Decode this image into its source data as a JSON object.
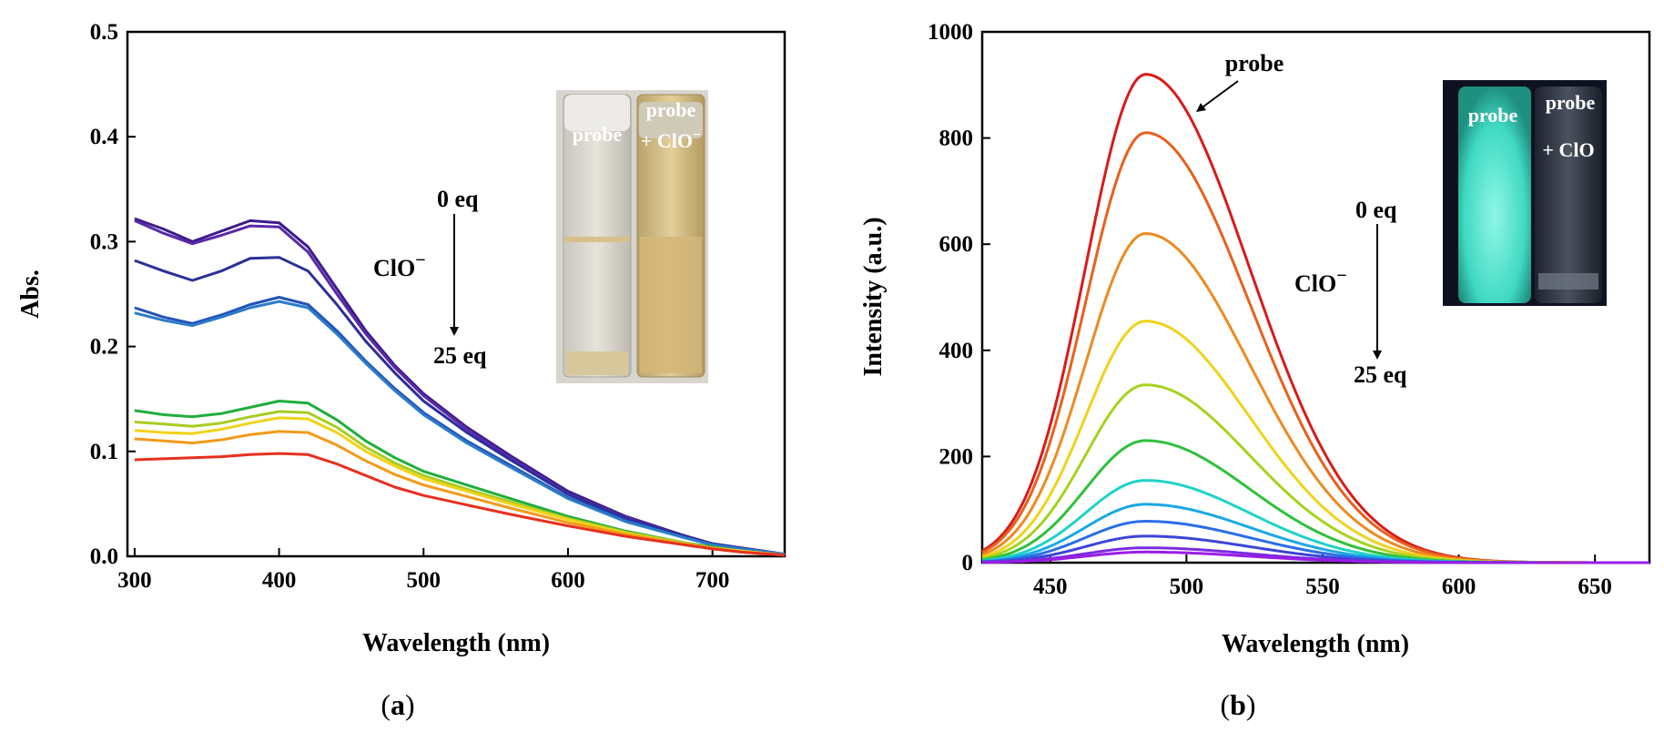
{
  "chart_data": [
    {
      "type": "line",
      "panel_label_prefix": "(",
      "panel_label": "a",
      "panel_label_suffix": ")",
      "xlabel": "Wavelength (nm)",
      "ylabel": "Abs.",
      "xlim": [
        295,
        750
      ],
      "ylim": [
        0,
        0.5
      ],
      "xticks": [
        300,
        400,
        500,
        600,
        700
      ],
      "yticks": [
        0.0,
        0.1,
        0.2,
        0.3,
        0.4,
        0.5
      ],
      "ytick_decimals": 1,
      "grid": false,
      "x": [
        300,
        320,
        340,
        360,
        380,
        400,
        420,
        440,
        460,
        480,
        500,
        530,
        560,
        600,
        640,
        680,
        700,
        720,
        750
      ],
      "series": [
        {
          "color": "#3d1a8c",
          "values": [
            0.322,
            0.312,
            0.3,
            0.31,
            0.32,
            0.318,
            0.295,
            0.255,
            0.215,
            0.182,
            0.155,
            0.123,
            0.096,
            0.062,
            0.038,
            0.02,
            0.012,
            0.008,
            0.002
          ]
        },
        {
          "color": "#5a2aa6",
          "values": [
            0.32,
            0.308,
            0.298,
            0.306,
            0.315,
            0.314,
            0.29,
            0.25,
            0.212,
            0.18,
            0.153,
            0.121,
            0.094,
            0.06,
            0.037,
            0.019,
            0.012,
            0.008,
            0.002
          ]
        },
        {
          "color": "#2b2f9a",
          "values": [
            0.282,
            0.272,
            0.263,
            0.272,
            0.284,
            0.285,
            0.272,
            0.24,
            0.205,
            0.175,
            0.148,
            0.118,
            0.092,
            0.059,
            0.036,
            0.019,
            0.012,
            0.008,
            0.002
          ]
        },
        {
          "color": "#2453b8",
          "values": [
            0.237,
            0.228,
            0.222,
            0.23,
            0.24,
            0.247,
            0.24,
            0.215,
            0.186,
            0.16,
            0.137,
            0.11,
            0.087,
            0.056,
            0.034,
            0.018,
            0.011,
            0.007,
            0.002
          ]
        },
        {
          "color": "#2b7cc9",
          "values": [
            0.232,
            0.225,
            0.22,
            0.228,
            0.237,
            0.243,
            0.237,
            0.212,
            0.184,
            0.158,
            0.135,
            0.108,
            0.085,
            0.055,
            0.033,
            0.018,
            0.011,
            0.007,
            0.002
          ]
        },
        {
          "color": "#1fae3c",
          "values": [
            0.139,
            0.135,
            0.133,
            0.136,
            0.142,
            0.148,
            0.146,
            0.13,
            0.11,
            0.094,
            0.081,
            0.068,
            0.055,
            0.038,
            0.024,
            0.013,
            0.009,
            0.005,
            0.001
          ]
        },
        {
          "color": "#a8cc1f",
          "values": [
            0.128,
            0.126,
            0.124,
            0.127,
            0.133,
            0.138,
            0.137,
            0.123,
            0.104,
            0.089,
            0.077,
            0.064,
            0.052,
            0.036,
            0.023,
            0.013,
            0.008,
            0.005,
            0.001
          ]
        },
        {
          "color": "#f2d21a",
          "values": [
            0.12,
            0.118,
            0.117,
            0.121,
            0.127,
            0.132,
            0.131,
            0.118,
            0.1,
            0.086,
            0.074,
            0.062,
            0.05,
            0.035,
            0.022,
            0.012,
            0.008,
            0.005,
            0.001
          ]
        },
        {
          "color": "#f29a1a",
          "values": [
            0.112,
            0.11,
            0.108,
            0.111,
            0.116,
            0.119,
            0.118,
            0.106,
            0.091,
            0.078,
            0.068,
            0.057,
            0.046,
            0.032,
            0.021,
            0.012,
            0.008,
            0.004,
            0.001
          ]
        },
        {
          "color": "#e6301f",
          "values": [
            0.092,
            0.093,
            0.094,
            0.095,
            0.097,
            0.098,
            0.097,
            0.088,
            0.077,
            0.066,
            0.058,
            0.049,
            0.04,
            0.029,
            0.019,
            0.011,
            0.007,
            0.004,
            0.001
          ]
        }
      ],
      "annotations": {
        "start": "0 eq",
        "end": "25 eq",
        "reagent": "ClO",
        "reagent_sup": "−"
      },
      "inset": {
        "left_label": "probe",
        "right_label_line1": "probe",
        "right_label_line2": "+ ClO",
        "right_label_sup": "−"
      }
    },
    {
      "type": "line",
      "panel_label_prefix": "(",
      "panel_label": "b",
      "panel_label_suffix": ")",
      "xlabel": "Wavelength (nm)",
      "ylabel": "Intensity (a.u.)",
      "xlim": [
        425,
        670
      ],
      "ylim": [
        0,
        1000
      ],
      "xticks": [
        450,
        500,
        550,
        600,
        650
      ],
      "yticks": [
        0,
        200,
        400,
        600,
        800,
        1000
      ],
      "ytick_decimals": 0,
      "grid": false,
      "peak_x": 485,
      "series": [
        {
          "color": "#d91a1a",
          "peak": 920
        },
        {
          "color": "#e8601c",
          "peak": 810
        },
        {
          "color": "#ee8a20",
          "peak": 620
        },
        {
          "color": "#f0d21c",
          "peak": 455
        },
        {
          "color": "#a6d21c",
          "peak": 335
        },
        {
          "color": "#2fc03a",
          "peak": 230
        },
        {
          "color": "#1fd2c8",
          "peak": 155
        },
        {
          "color": "#1aa8e6",
          "peak": 110
        },
        {
          "color": "#2a6ee6",
          "peak": 78
        },
        {
          "color": "#3c44d8",
          "peak": 50
        },
        {
          "color": "#7a2ce0",
          "peak": 28
        },
        {
          "color": "#9a1ce6",
          "peak": 20
        }
      ],
      "annotations": {
        "start": "0 eq",
        "end": "25 eq",
        "reagent": "ClO",
        "reagent_sup": "−",
        "pointer": "probe"
      },
      "inset": {
        "left_label": "probe",
        "right_label_line1": "probe",
        "right_label_line2": "+ ClO"
      }
    }
  ]
}
